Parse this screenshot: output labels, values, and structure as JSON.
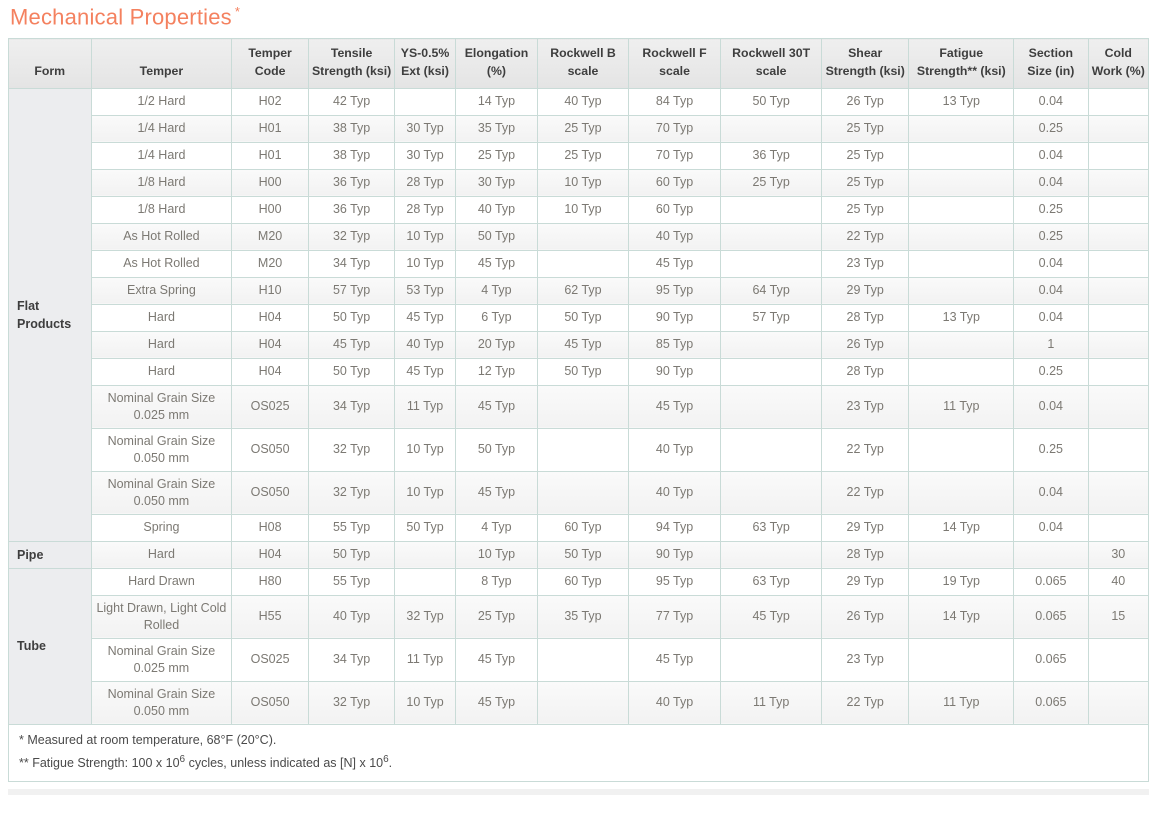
{
  "title": {
    "text": "Mechanical Properties",
    "asterisk": "*"
  },
  "colors": {
    "accent": "#F4815F",
    "border": "#C9DBD7",
    "header_bg": "#E9E9E9",
    "stripe": "#F5F5F5",
    "form_bg": "#ECEDEF",
    "header_text": "#3E3E3E",
    "body_text": "#7C7973"
  },
  "table": {
    "columns": [
      {
        "key": "form",
        "label": "Form"
      },
      {
        "key": "temper",
        "label": "Temper"
      },
      {
        "key": "temper-code",
        "label": "Temper Code"
      },
      {
        "key": "tensile-strength",
        "label": "Tensile Strength (ksi)"
      },
      {
        "key": "ys-ext",
        "label": "YS-0.5% Ext (ksi)"
      },
      {
        "key": "elongation",
        "label": "Elongation (%)"
      },
      {
        "key": "rockwell-b",
        "label": "Rockwell B scale"
      },
      {
        "key": "rockwell-f",
        "label": "Rockwell F scale"
      },
      {
        "key": "rockwell-30t",
        "label": "Rockwell 30T scale"
      },
      {
        "key": "shear-strength",
        "label": "Shear Strength (ksi)"
      },
      {
        "key": "fatigue-strength",
        "label": "Fatigue Strength** (ksi)"
      },
      {
        "key": "section-size",
        "label": "Section Size (in)"
      },
      {
        "key": "cold-work",
        "label": "Cold Work (%)"
      }
    ],
    "groups": [
      {
        "form": "Flat Products",
        "rows": [
          [
            "1/2 Hard",
            "H02",
            "42 Typ",
            "",
            "14 Typ",
            "40 Typ",
            "84 Typ",
            "50 Typ",
            "26 Typ",
            "13 Typ",
            "0.04",
            ""
          ],
          [
            "1/4 Hard",
            "H01",
            "38 Typ",
            "30 Typ",
            "35 Typ",
            "25 Typ",
            "70 Typ",
            "",
            "25 Typ",
            "",
            "0.25",
            ""
          ],
          [
            "1/4 Hard",
            "H01",
            "38 Typ",
            "30 Typ",
            "25 Typ",
            "25 Typ",
            "70 Typ",
            "36 Typ",
            "25 Typ",
            "",
            "0.04",
            ""
          ],
          [
            "1/8 Hard",
            "H00",
            "36 Typ",
            "28 Typ",
            "30 Typ",
            "10 Typ",
            "60 Typ",
            "25 Typ",
            "25 Typ",
            "",
            "0.04",
            ""
          ],
          [
            "1/8 Hard",
            "H00",
            "36 Typ",
            "28 Typ",
            "40 Typ",
            "10 Typ",
            "60 Typ",
            "",
            "25 Typ",
            "",
            "0.25",
            ""
          ],
          [
            "As Hot Rolled",
            "M20",
            "32 Typ",
            "10 Typ",
            "50 Typ",
            "",
            "40 Typ",
            "",
            "22 Typ",
            "",
            "0.25",
            ""
          ],
          [
            "As Hot Rolled",
            "M20",
            "34 Typ",
            "10 Typ",
            "45 Typ",
            "",
            "45 Typ",
            "",
            "23 Typ",
            "",
            "0.04",
            ""
          ],
          [
            "Extra Spring",
            "H10",
            "57 Typ",
            "53 Typ",
            "4 Typ",
            "62 Typ",
            "95 Typ",
            "64 Typ",
            "29 Typ",
            "",
            "0.04",
            ""
          ],
          [
            "Hard",
            "H04",
            "50 Typ",
            "45 Typ",
            "6 Typ",
            "50 Typ",
            "90 Typ",
            "57 Typ",
            "28 Typ",
            "13 Typ",
            "0.04",
            ""
          ],
          [
            "Hard",
            "H04",
            "45 Typ",
            "40 Typ",
            "20 Typ",
            "45 Typ",
            "85 Typ",
            "",
            "26 Typ",
            "",
            "1",
            ""
          ],
          [
            "Hard",
            "H04",
            "50 Typ",
            "45 Typ",
            "12 Typ",
            "50 Typ",
            "90 Typ",
            "",
            "28 Typ",
            "",
            "0.25",
            ""
          ],
          [
            "Nominal Grain Size 0.025 mm",
            "OS025",
            "34 Typ",
            "11 Typ",
            "45 Typ",
            "",
            "45 Typ",
            "",
            "23 Typ",
            "11 Typ",
            "0.04",
            ""
          ],
          [
            "Nominal Grain Size 0.050 mm",
            "OS050",
            "32 Typ",
            "10 Typ",
            "50 Typ",
            "",
            "40 Typ",
            "",
            "22 Typ",
            "",
            "0.25",
            ""
          ],
          [
            "Nominal Grain Size 0.050 mm",
            "OS050",
            "32 Typ",
            "10 Typ",
            "45 Typ",
            "",
            "40 Typ",
            "",
            "22 Typ",
            "",
            "0.04",
            ""
          ],
          [
            "Spring",
            "H08",
            "55 Typ",
            "50 Typ",
            "4 Typ",
            "60 Typ",
            "94 Typ",
            "63 Typ",
            "29 Typ",
            "14 Typ",
            "0.04",
            ""
          ]
        ]
      },
      {
        "form": "Pipe",
        "rows": [
          [
            "Hard",
            "H04",
            "50 Typ",
            "",
            "10 Typ",
            "50 Typ",
            "90 Typ",
            "",
            "28 Typ",
            "",
            "",
            "30"
          ]
        ]
      },
      {
        "form": "Tube",
        "rows": [
          [
            "Hard Drawn",
            "H80",
            "55 Typ",
            "",
            "8 Typ",
            "60 Typ",
            "95 Typ",
            "63 Typ",
            "29 Typ",
            "19 Typ",
            "0.065",
            "40"
          ],
          [
            "Light Drawn, Light Cold Rolled",
            "H55",
            "40 Typ",
            "32 Typ",
            "25 Typ",
            "35 Typ",
            "77 Typ",
            "45 Typ",
            "26 Typ",
            "14 Typ",
            "0.065",
            "15"
          ],
          [
            "Nominal Grain Size 0.025 mm",
            "OS025",
            "34 Typ",
            "11 Typ",
            "45 Typ",
            "",
            "45 Typ",
            "",
            "23 Typ",
            "",
            "0.065",
            ""
          ],
          [
            "Nominal Grain Size 0.050 mm",
            "OS050",
            "32 Typ",
            "10 Typ",
            "45 Typ",
            "",
            "40 Typ",
            "11 Typ",
            "22 Typ",
            "11 Typ",
            "0.065",
            ""
          ]
        ]
      }
    ],
    "footnotes": [
      {
        "text": "* Measured at room temperature, 68°F (20°C)."
      },
      {
        "parts": [
          "** Fatigue Strength: 100 x 10",
          "6",
          " cycles, unless indicated as [N] x 10",
          "6",
          "."
        ]
      }
    ]
  }
}
